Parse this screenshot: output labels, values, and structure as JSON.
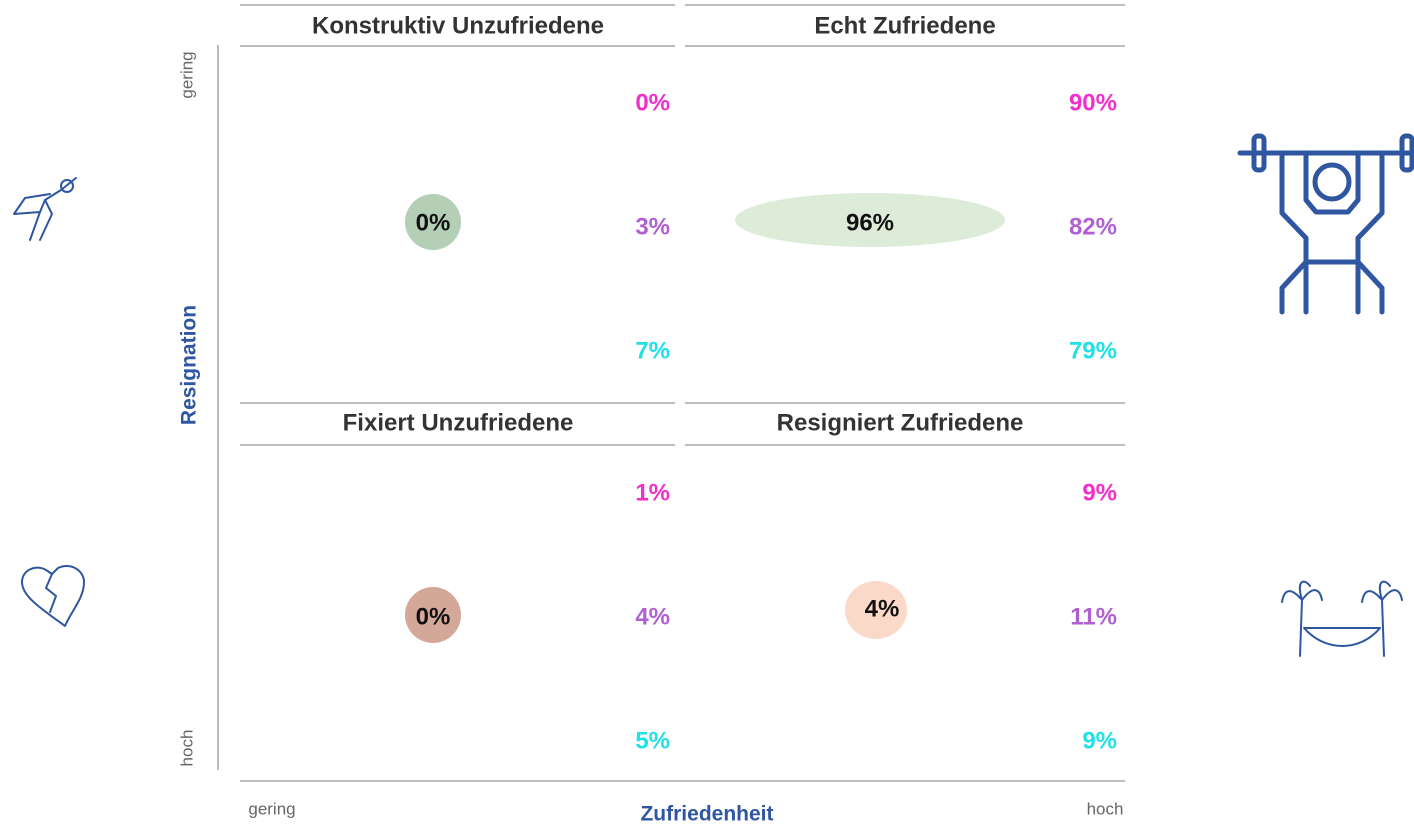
{
  "quadrants": [
    {
      "title": "Konstruktiv Unzufriedene",
      "center": "0%",
      "values": [
        "0%",
        "3%",
        "7%"
      ]
    },
    {
      "title": "Echt Zufriedene",
      "center": "96%",
      "values": [
        "90%",
        "82%",
        "79%"
      ]
    },
    {
      "title": "Fixiert Unzufriedene",
      "center": "0%",
      "values": [
        "1%",
        "4%",
        "5%"
      ]
    },
    {
      "title": "Resigniert Zufriedene",
      "center": "4%",
      "values": [
        "9%",
        "11%",
        "9%"
      ]
    }
  ],
  "axes": {
    "y": {
      "label": "Resignation",
      "low": "gering",
      "high": "hoch"
    },
    "x": {
      "label": "Zufriedenheit",
      "low": "gering",
      "high": "hoch"
    }
  }
}
